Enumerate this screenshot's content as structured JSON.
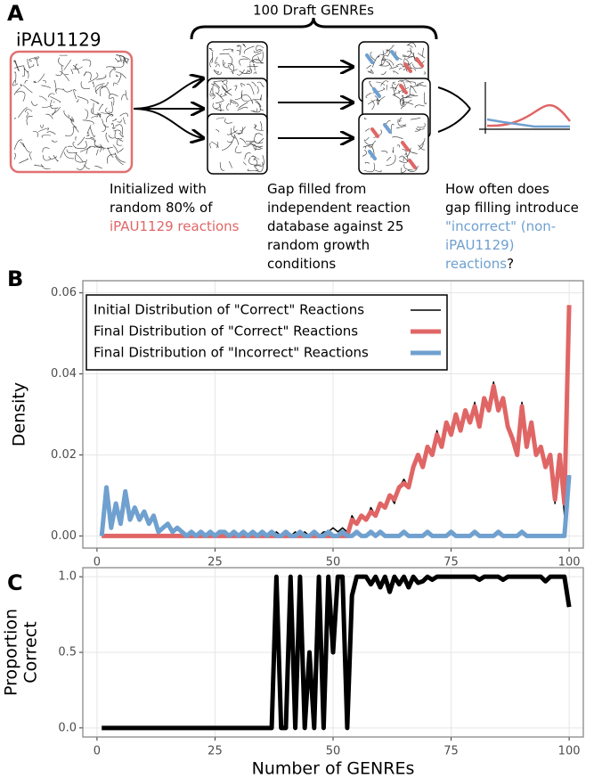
{
  "diagram": {
    "panel_labels": {
      "a": "A",
      "b": "B",
      "c": "C"
    },
    "brace_label": "100 Draft GENREs",
    "model_name": "iPAU1129",
    "captions": [
      [
        [
          {
            "text": "Initialized with"
          }
        ],
        [
          {
            "text": "random 80% of"
          }
        ],
        [
          {
            "text": "iPAU1129 reactions",
            "color": "#e06666"
          }
        ]
      ],
      [
        [
          {
            "text": "Gap filled from"
          }
        ],
        [
          {
            "text": "independent reaction"
          }
        ],
        [
          {
            "text": "database against 25"
          }
        ],
        [
          {
            "text": "random growth"
          }
        ],
        [
          {
            "text": "conditions"
          }
        ]
      ],
      [
        [
          {
            "text": "How often does"
          }
        ],
        [
          {
            "text": "gap filling introduce"
          }
        ],
        [
          {
            "text": "\"incorrect\" (non-",
            "color": "#6fa0cf"
          }
        ],
        [
          {
            "text": "iPAU1129)",
            "color": "#6fa0cf"
          }
        ],
        [
          {
            "text": "reactions",
            "color": "#6fa0cf"
          },
          {
            "text": "?"
          }
        ]
      ]
    ]
  },
  "chart_data": [
    {
      "type": "line",
      "x": [
        1,
        2,
        3,
        4,
        5,
        6,
        7,
        8,
        9,
        10,
        11,
        12,
        13,
        14,
        15,
        16,
        17,
        18,
        19,
        20,
        21,
        22,
        23,
        24,
        25,
        26,
        27,
        28,
        29,
        30,
        31,
        32,
        33,
        34,
        35,
        36,
        37,
        38,
        39,
        40,
        41,
        42,
        43,
        44,
        45,
        46,
        47,
        48,
        49,
        50,
        51,
        52,
        53,
        54,
        55,
        56,
        57,
        58,
        59,
        60,
        61,
        62,
        63,
        64,
        65,
        66,
        67,
        68,
        69,
        70,
        71,
        72,
        73,
        74,
        75,
        76,
        77,
        78,
        79,
        80,
        81,
        82,
        83,
        84,
        85,
        86,
        87,
        88,
        89,
        90,
        91,
        92,
        93,
        94,
        95,
        96,
        97,
        98,
        99,
        100
      ],
      "series": [
        {
          "name": "Initial Distribution of \"Correct\" Reactions",
          "color": "#000000",
          "width": 1.5,
          "values": [
            0,
            0,
            0,
            0,
            0,
            0,
            0,
            0,
            0,
            0,
            0,
            0,
            0,
            0,
            0,
            0,
            0,
            0,
            0,
            0,
            0,
            0,
            0,
            0,
            0,
            0,
            0,
            0,
            0,
            0,
            0,
            0,
            0,
            0,
            0,
            0,
            0,
            0.001,
            0,
            0.001,
            0,
            0.001,
            0,
            0.001,
            0,
            0.001,
            0,
            0.001,
            0.001,
            0.002,
            0.001,
            0.002,
            0.001,
            0.005,
            0.003,
            0.005,
            0.004,
            0.007,
            0.005,
            0.008,
            0.007,
            0.01,
            0.008,
            0.012,
            0.014,
            0.012,
            0.016,
            0.02,
            0.017,
            0.022,
            0.02,
            0.026,
            0.022,
            0.028,
            0.025,
            0.03,
            0.026,
            0.03,
            0.028,
            0.033,
            0.027,
            0.034,
            0.032,
            0.038,
            0.031,
            0.034,
            0.027,
            0.025,
            0.02,
            0.033,
            0.022,
            0.028,
            0.02,
            0.022,
            0.017,
            0.02,
            0.008,
            0.02,
            0.005,
            0.015
          ]
        },
        {
          "name": "Final Distribution of \"Correct\" Reactions",
          "color": "#e06666",
          "width": 5,
          "values": [
            0,
            0,
            0,
            0,
            0,
            0,
            0,
            0,
            0,
            0,
            0,
            0,
            0,
            0,
            0,
            0,
            0,
            0,
            0,
            0,
            0,
            0,
            0,
            0,
            0,
            0,
            0,
            0,
            0,
            0,
            0,
            0,
            0,
            0,
            0,
            0,
            0,
            0,
            0,
            0,
            0,
            0,
            0,
            0,
            0,
            0,
            0,
            0,
            0,
            0,
            0,
            0,
            0,
            0.004,
            0.003,
            0.005,
            0.004,
            0.006,
            0.005,
            0.008,
            0.007,
            0.01,
            0.009,
            0.012,
            0.013,
            0.012,
            0.017,
            0.02,
            0.017,
            0.022,
            0.02,
            0.025,
            0.022,
            0.028,
            0.025,
            0.03,
            0.026,
            0.031,
            0.028,
            0.032,
            0.027,
            0.034,
            0.031,
            0.037,
            0.031,
            0.034,
            0.027,
            0.024,
            0.02,
            0.032,
            0.022,
            0.028,
            0.02,
            0.022,
            0.017,
            0.02,
            0.009,
            0.02,
            0.008,
            0.057
          ]
        },
        {
          "name": "Final Distribution of \"Incorrect\" Reactions",
          "color": "#6fa0cf",
          "width": 5,
          "values": [
            0,
            0.012,
            0.002,
            0.008,
            0.003,
            0.011,
            0.004,
            0.007,
            0.004,
            0.006,
            0.003,
            0.005,
            0.001,
            0.002,
            0.003,
            0.001,
            0.002,
            0.001,
            0,
            0.001,
            0,
            0.001,
            0,
            0.001,
            0,
            0.001,
            0.001,
            0,
            0.001,
            0,
            0.001,
            0,
            0.001,
            0,
            0.001,
            0,
            0.001,
            0,
            0,
            0.001,
            0,
            0,
            0.001,
            0,
            0,
            0.001,
            0,
            0,
            0.001,
            0,
            0,
            0.001,
            0,
            0,
            0.001,
            0,
            0,
            0.001,
            0,
            0.001,
            0,
            0,
            0,
            0,
            0.001,
            0,
            0,
            0,
            0,
            0.001,
            0,
            0,
            0,
            0,
            0.001,
            0,
            0,
            0,
            0,
            0.001,
            0,
            0,
            0,
            0,
            0.001,
            0,
            0,
            0,
            0,
            0.001,
            0,
            0,
            0,
            0,
            0,
            0,
            0,
            0,
            0,
            0.015
          ]
        }
      ],
      "xlim": [
        -3,
        103
      ],
      "xticks": [
        0,
        25,
        50,
        75,
        100
      ],
      "ylim": [
        -0.003,
        0.063
      ],
      "yticks": [
        {
          "value": 0,
          "label": "0.00"
        },
        {
          "value": 0.02,
          "label": "0.02"
        },
        {
          "value": 0.04,
          "label": "0.04"
        },
        {
          "value": 0.06,
          "label": "0.06"
        }
      ],
      "ylabel": [
        "Density"
      ],
      "grid": true,
      "legend": "top-left"
    },
    {
      "type": "line",
      "x": [
        1,
        2,
        3,
        4,
        5,
        6,
        7,
        8,
        9,
        10,
        11,
        12,
        13,
        14,
        15,
        16,
        17,
        18,
        19,
        20,
        21,
        22,
        23,
        24,
        25,
        26,
        27,
        28,
        29,
        30,
        31,
        32,
        33,
        34,
        35,
        36,
        37,
        38,
        39,
        40,
        41,
        42,
        43,
        44,
        45,
        46,
        47,
        48,
        49,
        50,
        51,
        52,
        53,
        54,
        55,
        56,
        57,
        58,
        59,
        60,
        61,
        62,
        63,
        64,
        65,
        66,
        67,
        68,
        69,
        70,
        71,
        72,
        73,
        74,
        75,
        76,
        77,
        78,
        79,
        80,
        81,
        82,
        83,
        84,
        85,
        86,
        87,
        88,
        89,
        90,
        91,
        92,
        93,
        94,
        95,
        96,
        97,
        98,
        99,
        100
      ],
      "series": [
        {
          "color": "#000000",
          "width": 5,
          "values": [
            0,
            0,
            0,
            0,
            0,
            0,
            0,
            0,
            0,
            0,
            0,
            0,
            0,
            0,
            0,
            0,
            0,
            0,
            0,
            0,
            0,
            0,
            0,
            0,
            0,
            0,
            0,
            0,
            0,
            0,
            0,
            0,
            0,
            0,
            0,
            0,
            0,
            1,
            0,
            0,
            1,
            0,
            1,
            0,
            0.5,
            0,
            1,
            0,
            1,
            0.5,
            1,
            1,
            0,
            0.875,
            1,
            1,
            1,
            0.95,
            1,
            0.93,
            1,
            0.9,
            1,
            0.95,
            1,
            0.93,
            1,
            0.96,
            0.97,
            1,
            0.98,
            1,
            1,
            1,
            1,
            1,
            1,
            1,
            1,
            1,
            0.98,
            1,
            1,
            1,
            1,
            0.98,
            1,
            1,
            1,
            1,
            1,
            1,
            1,
            1,
            0.97,
            1,
            1,
            1,
            1,
            0.8
          ]
        }
      ],
      "xlim": [
        -3,
        103
      ],
      "xticks": [
        0,
        25,
        50,
        75,
        100
      ],
      "ylim": [
        -0.06,
        1.06
      ],
      "yticks": [
        {
          "value": 0,
          "label": "0.0"
        },
        {
          "value": 0.5,
          "label": "0.5"
        },
        {
          "value": 1,
          "label": "1.0"
        }
      ],
      "ylabel": [
        "Proportion",
        "Correct"
      ],
      "xlabel": "Number of GENREs",
      "grid": true
    }
  ]
}
